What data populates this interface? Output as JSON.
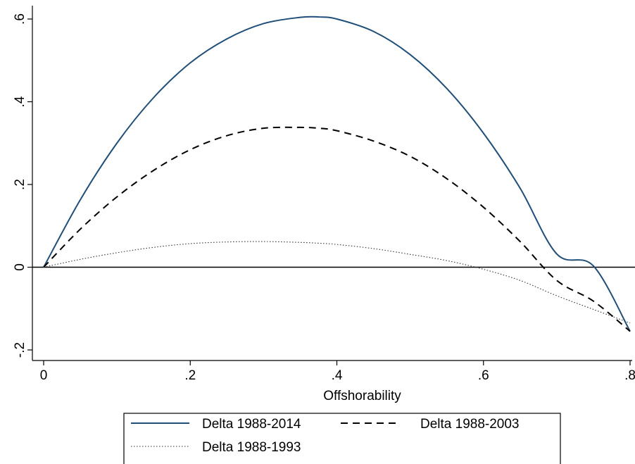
{
  "chart_data": {
    "type": "line",
    "title": "",
    "xlabel": "Offshorability",
    "ylabel": "",
    "xlim": [
      0,
      0.8
    ],
    "ylim": [
      -0.2,
      0.6
    ],
    "xticks": [
      0,
      0.2,
      0.4,
      0.6,
      0.8
    ],
    "xtick_labels": [
      "0",
      ".2",
      ".4",
      ".6",
      ".8"
    ],
    "yticks": [
      -0.2,
      0,
      0.2,
      0.4,
      0.6
    ],
    "ytick_labels": [
      "-.2",
      "0",
      ".2",
      ".4",
      ".6"
    ],
    "reference_line_y": 0,
    "grid": false,
    "legend_position": "bottom",
    "x": [
      0,
      0.05,
      0.1,
      0.15,
      0.2,
      0.25,
      0.3,
      0.35,
      0.375,
      0.4,
      0.45,
      0.5,
      0.55,
      0.6,
      0.65,
      0.7,
      0.75,
      0.8
    ],
    "series": [
      {
        "name": "Delta 1988-2014",
        "style": "solid",
        "color": "#1f4e79",
        "values": [
          0,
          0.163,
          0.3,
          0.41,
          0.494,
          0.552,
          0.589,
          0.604,
          0.605,
          0.6,
          0.57,
          0.514,
          0.432,
          0.324,
          0.191,
          0.032,
          0.003,
          -0.155
        ]
      },
      {
        "name": "Delta 1988-2003",
        "style": "dashed",
        "color": "#000000",
        "values": [
          0,
          0.092,
          0.17,
          0.234,
          0.284,
          0.318,
          0.336,
          0.338,
          0.336,
          0.33,
          0.305,
          0.268,
          0.214,
          0.145,
          0.062,
          -0.032,
          -0.082,
          -0.155
        ]
      },
      {
        "name": "Delta 1988-1993",
        "style": "dotted",
        "color": "#333333",
        "values": [
          0,
          0.019,
          0.035,
          0.048,
          0.057,
          0.061,
          0.062,
          0.06,
          0.058,
          0.055,
          0.045,
          0.031,
          0.016,
          -0.005,
          -0.032,
          -0.069,
          -0.102,
          -0.135
        ]
      }
    ]
  }
}
